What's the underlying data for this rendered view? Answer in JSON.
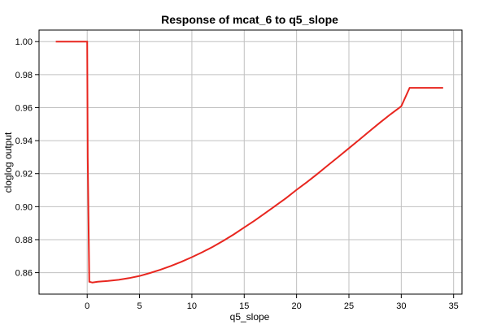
{
  "chart_data": {
    "type": "line",
    "title": "Response of mcat_6 to q5_slope",
    "xlabel": "q5_slope",
    "ylabel": "cloglog output",
    "xlim": [
      -4.6,
      35.8
    ],
    "ylim": [
      0.847,
      1.007
    ],
    "x_ticks": [
      0,
      5,
      10,
      15,
      20,
      25,
      30,
      35
    ],
    "y_ticks": [
      0.86,
      0.88,
      0.9,
      0.92,
      0.94,
      0.96,
      0.98,
      1.0
    ],
    "x_tick_labels": [
      "0",
      "5",
      "10",
      "15",
      "20",
      "25",
      "30",
      "35"
    ],
    "y_tick_labels": [
      "0.86",
      "0.88",
      "0.90",
      "0.92",
      "0.94",
      "0.96",
      "0.98",
      "1.00"
    ],
    "grid": true,
    "series": [
      {
        "color": "#e8261f",
        "x": [
          -3.0,
          -1.0,
          0.0,
          0.05,
          0.2,
          0.5,
          1.0,
          2.0,
          3.0,
          4.0,
          5.0,
          6.0,
          7.0,
          8.0,
          9.0,
          10.0,
          11.0,
          12.0,
          13.0,
          14.0,
          15.0,
          16.0,
          17.0,
          18.0,
          19.0,
          20.0,
          21.0,
          22.0,
          23.0,
          24.0,
          25.0,
          26.0,
          27.0,
          28.0,
          29.0,
          30.0,
          30.8,
          31.5,
          33.0,
          34.0
        ],
        "y": [
          1.0,
          1.0,
          1.0,
          0.93,
          0.8545,
          0.854,
          0.8545,
          0.855,
          0.8557,
          0.8567,
          0.858,
          0.8598,
          0.8618,
          0.8641,
          0.8666,
          0.8694,
          0.8724,
          0.8757,
          0.8793,
          0.8832,
          0.8874,
          0.8916,
          0.8961,
          0.9006,
          0.9052,
          0.9102,
          0.9149,
          0.9199,
          0.9251,
          0.9302,
          0.9354,
          0.9406,
          0.9459,
          0.9511,
          0.9561,
          0.9608,
          0.972,
          0.972,
          0.972,
          0.972
        ]
      }
    ]
  }
}
